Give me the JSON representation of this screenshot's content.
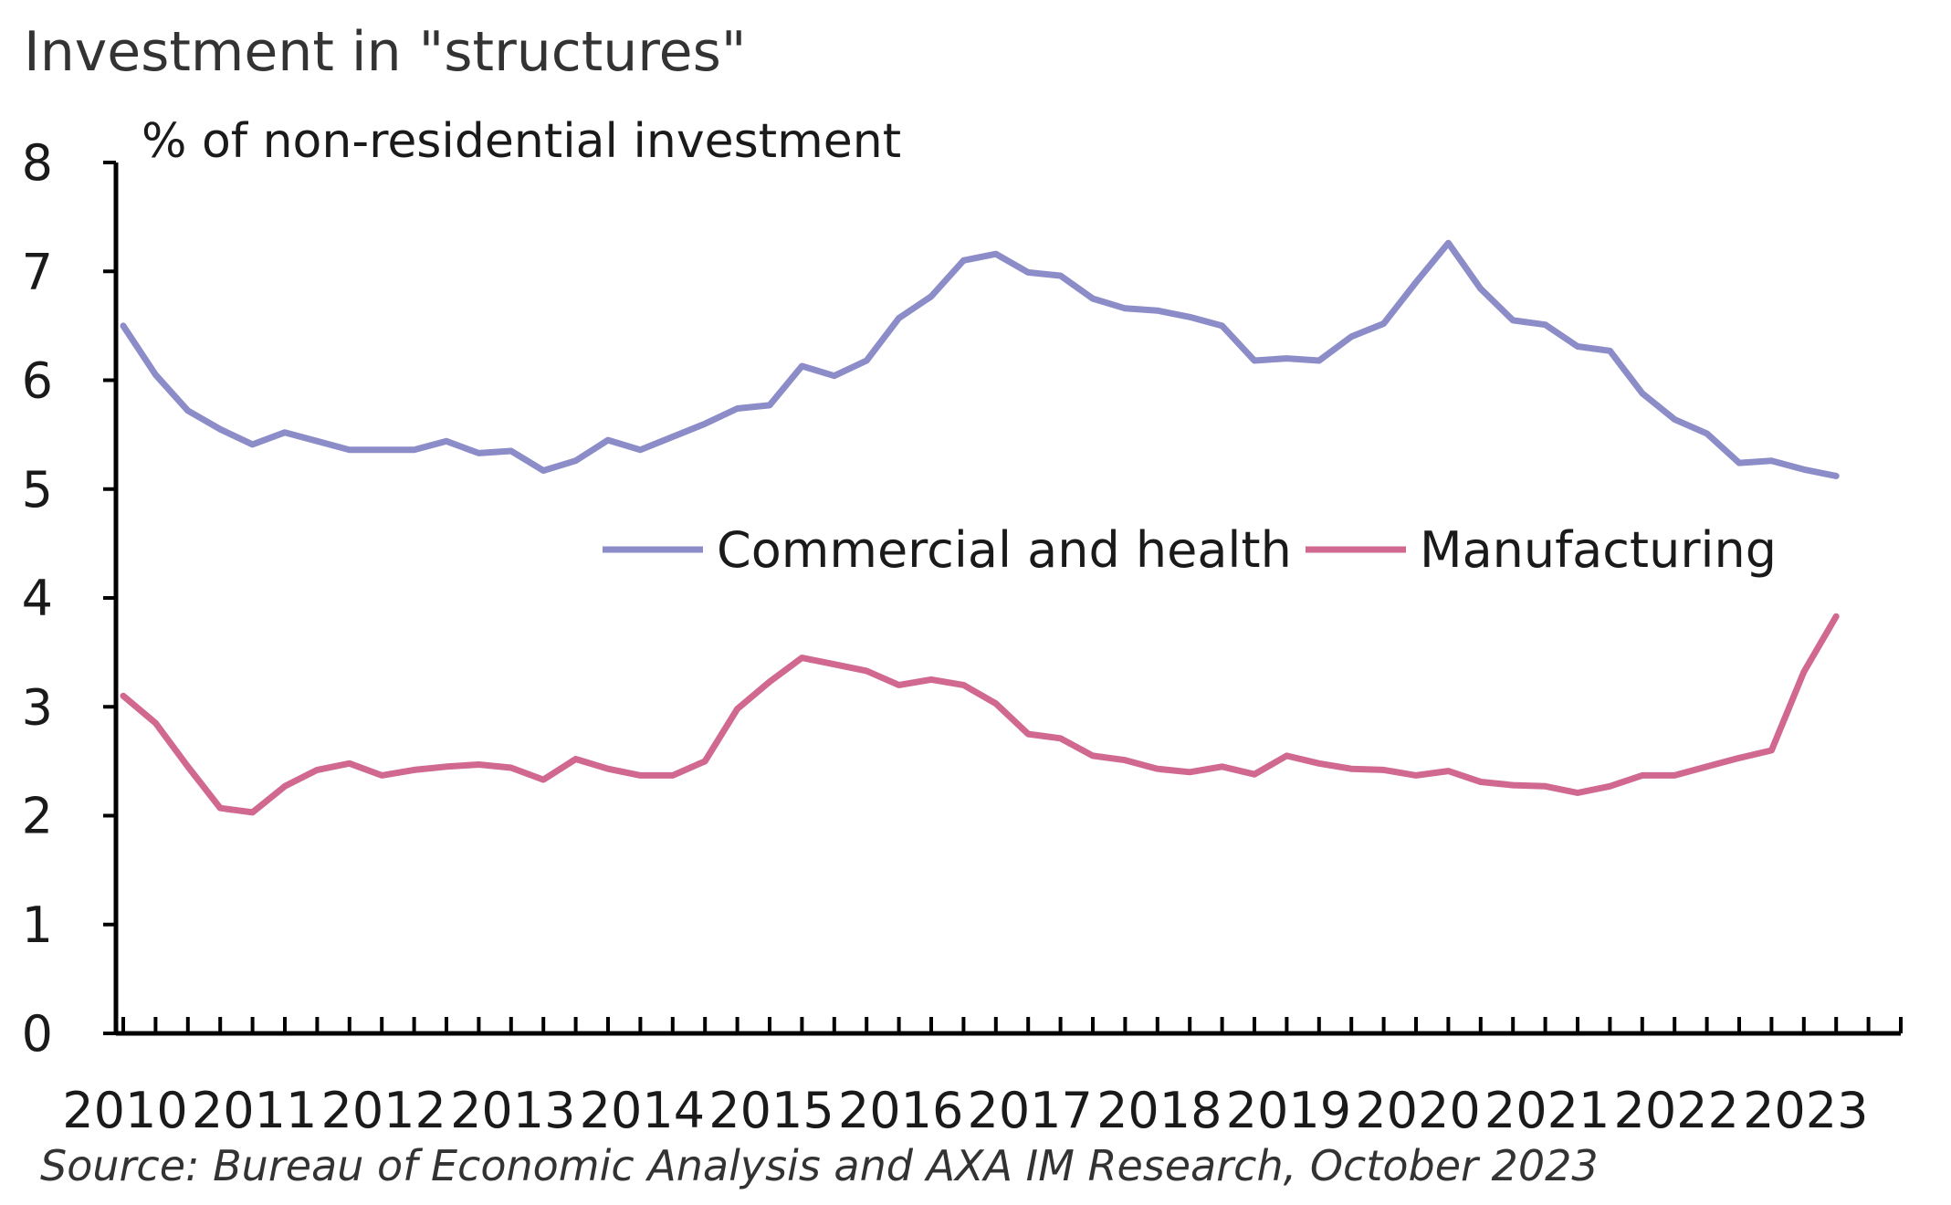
{
  "title": "Investment in \"structures\"",
  "source": "Source: Bureau of Economic Analysis and AXA IM Research, October 2023",
  "chart_data": {
    "type": "line",
    "title": "Investment in \"structures\"",
    "ylabel": "% of non-residential  investment",
    "ylim": [
      0,
      8
    ],
    "yticks": [
      0,
      1,
      2,
      3,
      4,
      5,
      6,
      7,
      8
    ],
    "xlim": [
      2010,
      2023.75
    ],
    "xticks": [
      2010,
      2011,
      2012,
      2013,
      2014,
      2015,
      2016,
      2017,
      2018,
      2019,
      2020,
      2021,
      2022,
      2023
    ],
    "xtick_labels": [
      "2010",
      "2011",
      "2012",
      "2013",
      "2014",
      "2015",
      "2016",
      "2017",
      "2018",
      "2019",
      "2020",
      "2021",
      "2022",
      "2023"
    ],
    "grid": false,
    "legend": "center",
    "series": [
      {
        "name": "Commercial and health",
        "color": "#8c8cc8",
        "x": [
          2010,
          2010.25,
          2010.5,
          2010.75,
          2011,
          2011.25,
          2011.5,
          2011.75,
          2012,
          2012.25,
          2012.5,
          2012.75,
          2013,
          2013.25,
          2013.5,
          2013.75,
          2014,
          2014.25,
          2014.5,
          2014.75,
          2015,
          2015.25,
          2015.5,
          2015.75,
          2016,
          2016.25,
          2016.5,
          2016.75,
          2017,
          2017.25,
          2017.5,
          2017.75,
          2018,
          2018.25,
          2018.5,
          2018.75,
          2019,
          2019.25,
          2019.5,
          2019.75,
          2020,
          2020.25,
          2020.5,
          2020.75,
          2021,
          2021.25,
          2021.5,
          2021.75,
          2022,
          2022.25,
          2022.5,
          2022.75,
          2023,
          2023.25
        ],
        "values": [
          6.5,
          6.05,
          5.72,
          5.55,
          5.41,
          5.52,
          5.44,
          5.36,
          5.36,
          5.36,
          5.44,
          5.33,
          5.35,
          5.17,
          5.26,
          5.45,
          5.36,
          5.48,
          5.6,
          5.74,
          5.77,
          6.13,
          6.04,
          6.18,
          6.57,
          6.77,
          7.1,
          7.16,
          6.99,
          6.96,
          6.75,
          6.66,
          6.64,
          6.58,
          6.5,
          6.18,
          6.2,
          6.18,
          6.4,
          6.52,
          6.9,
          7.26,
          6.84,
          6.55,
          6.51,
          6.31,
          6.27,
          5.88,
          5.64,
          5.51,
          5.24,
          5.26,
          5.18,
          5.12
        ]
      },
      {
        "name": "Manufacturing",
        "color": "#d0688f",
        "x": [
          2010,
          2010.25,
          2010.5,
          2010.75,
          2011,
          2011.25,
          2011.5,
          2011.75,
          2012,
          2012.25,
          2012.5,
          2012.75,
          2013,
          2013.25,
          2013.5,
          2013.75,
          2014,
          2014.25,
          2014.5,
          2014.75,
          2015,
          2015.25,
          2015.5,
          2015.75,
          2016,
          2016.25,
          2016.5,
          2016.75,
          2017,
          2017.25,
          2017.5,
          2017.75,
          2018,
          2018.25,
          2018.5,
          2018.75,
          2019,
          2019.25,
          2019.5,
          2019.75,
          2020,
          2020.25,
          2020.5,
          2020.75,
          2021,
          2021.25,
          2021.5,
          2021.75,
          2022,
          2022.25,
          2022.5,
          2022.75,
          2023,
          2023.25
        ],
        "values": [
          3.1,
          2.85,
          2.45,
          2.07,
          2.03,
          2.27,
          2.42,
          2.48,
          2.37,
          2.42,
          2.45,
          2.47,
          2.44,
          2.33,
          2.52,
          2.43,
          2.37,
          2.37,
          2.5,
          2.98,
          3.23,
          3.45,
          3.39,
          3.33,
          3.2,
          3.25,
          3.2,
          3.03,
          2.75,
          2.71,
          2.55,
          2.51,
          2.43,
          2.4,
          2.45,
          2.38,
          2.55,
          2.48,
          2.43,
          2.42,
          2.37,
          2.41,
          2.31,
          2.28,
          2.27,
          2.21,
          2.27,
          2.37,
          2.37,
          2.45,
          2.53,
          2.6,
          3.32,
          3.83
        ]
      }
    ]
  }
}
